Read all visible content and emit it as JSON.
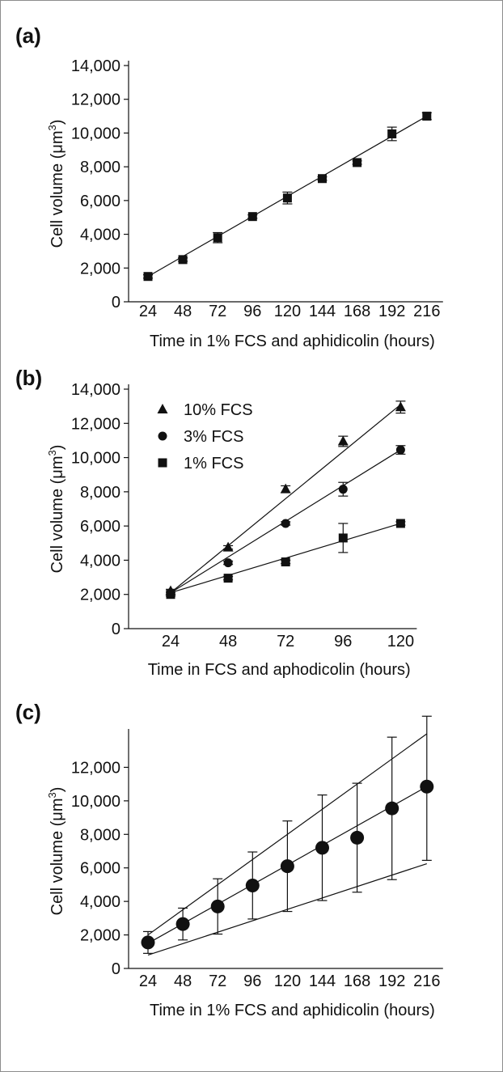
{
  "chart_data": [
    {
      "type": "scatter",
      "panel_label": "(a)",
      "xlabel": "Time in 1% FCS and aphidicolin (hours)",
      "ylabel": "Cell volume (μm³)",
      "ylabel_parts": {
        "main": "Cell volume (",
        "unit": "μm",
        "sup": "3",
        "close": ")"
      },
      "x": [
        24,
        48,
        72,
        96,
        120,
        144,
        168,
        192,
        216
      ],
      "xticks": [
        "24",
        "48",
        "72",
        "96",
        "120",
        "144",
        "168",
        "192",
        "216"
      ],
      "ylim": [
        0,
        14000
      ],
      "yticks": [
        0,
        2000,
        4000,
        6000,
        8000,
        10000,
        12000,
        14000
      ],
      "ytick_labels": [
        "0",
        "2,000",
        "4,000",
        "6,000",
        "8,000",
        "10,000",
        "12,000",
        "14,000"
      ],
      "series": [
        {
          "marker": "square",
          "values": [
            1500,
            2500,
            3800,
            5050,
            6150,
            7300,
            8250,
            9950,
            11000
          ],
          "errors": [
            100,
            100,
            300,
            100,
            350,
            100,
            100,
            400,
            200
          ]
        }
      ],
      "fit_lines": [
        {
          "from": [
            24,
            1500
          ],
          "to": [
            216,
            11000
          ]
        }
      ],
      "legend": []
    },
    {
      "type": "scatter",
      "panel_label": "(b)",
      "xlabel": "Time in FCS and aphodicolin (hours)",
      "ylabel": "Cell volume (μm³)",
      "ylabel_parts": {
        "main": "Cell volume (",
        "unit": "μm",
        "sup": "3",
        "close": ")"
      },
      "x": [
        24,
        48,
        72,
        96,
        120
      ],
      "xticks": [
        "24",
        "48",
        "72",
        "96",
        "120"
      ],
      "ylim": [
        0,
        14000
      ],
      "yticks": [
        0,
        2000,
        4000,
        6000,
        8000,
        10000,
        12000,
        14000
      ],
      "ytick_labels": [
        "0",
        "2,000",
        "4,000",
        "6,000",
        "8,000",
        "10,000",
        "12,000",
        "14,000"
      ],
      "series": [
        {
          "name": "10% FCS",
          "marker": "triangle",
          "values": [
            2200,
            4750,
            8150,
            10950,
            12950
          ],
          "errors": [
            100,
            100,
            200,
            300,
            350
          ]
        },
        {
          "name": "3% FCS",
          "marker": "circle",
          "values": [
            2100,
            3850,
            6150,
            8150,
            10450
          ],
          "errors": [
            100,
            100,
            100,
            400,
            250
          ]
        },
        {
          "name": "1% FCS",
          "marker": "square",
          "values": [
            2000,
            2950,
            3900,
            5300,
            6150
          ],
          "errors": [
            100,
            100,
            100,
            850,
            100
          ]
        }
      ],
      "fit_lines": [
        {
          "from": [
            24,
            2100
          ],
          "to": [
            120,
            13100
          ]
        },
        {
          "from": [
            24,
            2100
          ],
          "to": [
            120,
            10450
          ]
        },
        {
          "from": [
            24,
            2100
          ],
          "to": [
            120,
            6150
          ]
        }
      ],
      "legend": [
        "10% FCS",
        "3% FCS",
        "1% FCS"
      ],
      "legend_placement": "top-left"
    },
    {
      "type": "scatter",
      "panel_label": "(c)",
      "xlabel": "Time in 1% FCS and aphidicolin (hours)",
      "ylabel": "Cell volume (μm³)",
      "ylabel_parts": {
        "main": "Cell volume (",
        "unit": "μm",
        "sup": "3",
        "close": ")"
      },
      "x": [
        24,
        48,
        72,
        96,
        120,
        144,
        168,
        192,
        216
      ],
      "xticks": [
        "24",
        "48",
        "72",
        "96",
        "120",
        "144",
        "168",
        "192",
        "216"
      ],
      "ylim": [
        0,
        14000
      ],
      "yticks": [
        0,
        2000,
        4000,
        6000,
        8000,
        10000,
        12000
      ],
      "ytick_labels": [
        "0",
        "2,000",
        "4,000",
        "6,000",
        "8,000",
        "10,000",
        "12,000"
      ],
      "series": [
        {
          "marker": "circle-large",
          "values": [
            1550,
            2650,
            3700,
            4950,
            6100,
            7200,
            7800,
            9550,
            10850
          ],
          "err_low": [
            650,
            950,
            1650,
            2000,
            2700,
            3150,
            3250,
            4250,
            4400
          ],
          "err_high": [
            650,
            950,
            1650,
            2000,
            2700,
            3150,
            3250,
            4250,
            4200
          ]
        }
      ],
      "fit_lines": [
        {
          "from": [
            24,
            2000
          ],
          "to": [
            216,
            14000
          ]
        },
        {
          "from": [
            24,
            1500
          ],
          "to": [
            216,
            10850
          ]
        },
        {
          "from": [
            24,
            800
          ],
          "to": [
            216,
            6250
          ]
        }
      ],
      "legend": []
    }
  ]
}
